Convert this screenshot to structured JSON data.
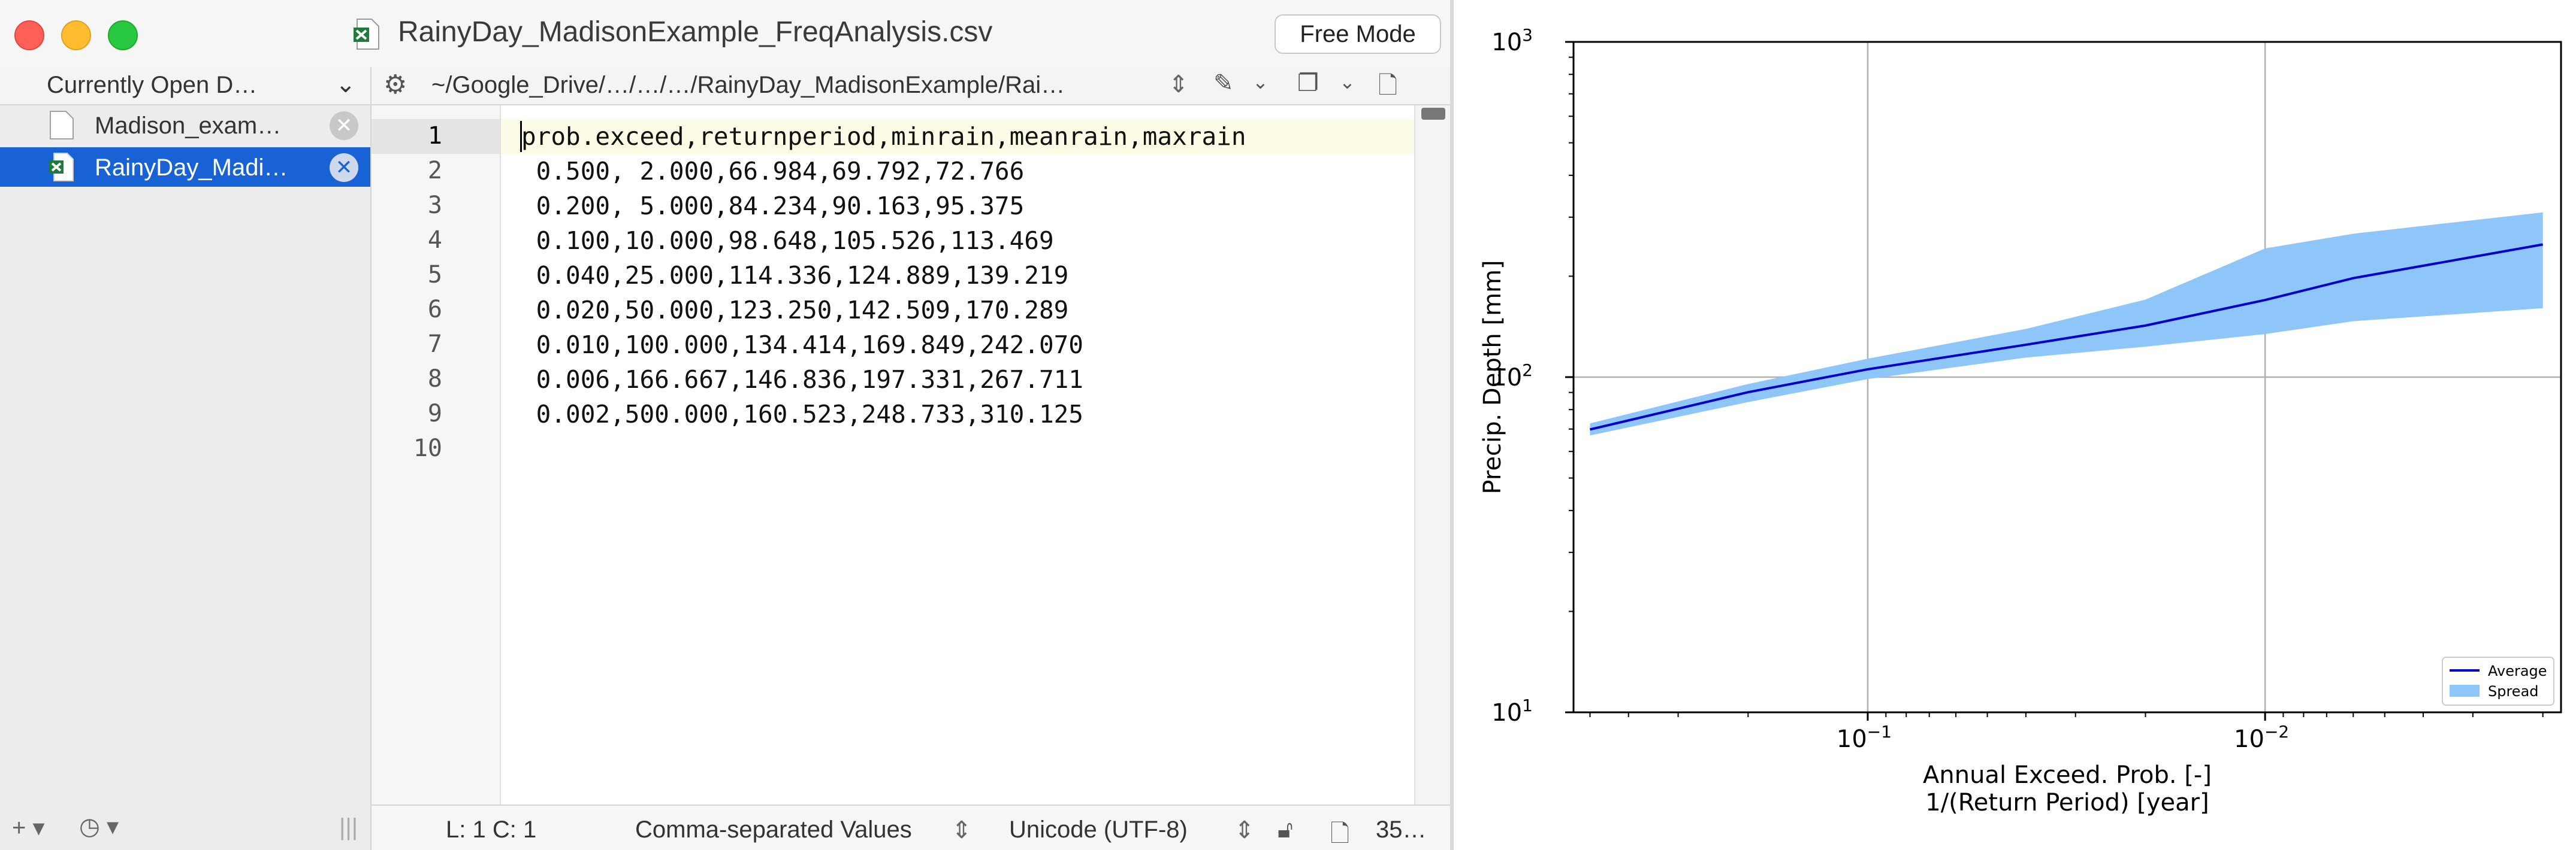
{
  "window": {
    "title": "RainyDay_MadisonExample_FreqAnalysis.csv",
    "mode_button": "Free Mode"
  },
  "pathbar": {
    "documents_label": "Currently Open D…",
    "path": "~/Google_Drive/…/…/…/RainyDay_MadisonExample/Rai…"
  },
  "sidebar": {
    "items": [
      {
        "label": "Madison_exam…",
        "icon": "document-icon",
        "selected": false
      },
      {
        "label": "RainyDay_Madi…",
        "icon": "spreadsheet-icon",
        "selected": true
      }
    ],
    "footer": {
      "add": "+",
      "history": "clock-icon",
      "resize": "|||"
    }
  },
  "editor": {
    "line_numbers": [
      "1",
      "2",
      "3",
      "4",
      "5",
      "6",
      "7",
      "8",
      "9",
      "10"
    ],
    "lines": [
      "prob.exceed,returnperiod,minrain,meanrain,maxrain",
      " 0.500, 2.000,66.984,69.792,72.766",
      " 0.200, 5.000,84.234,90.163,95.375",
      " 0.100,10.000,98.648,105.526,113.469",
      " 0.040,25.000,114.336,124.889,139.219",
      " 0.020,50.000,123.250,142.509,170.289",
      " 0.010,100.000,134.414,169.849,242.070",
      " 0.006,166.667,146.836,197.331,267.711",
      " 0.002,500.000,160.523,248.733,310.125",
      ""
    ]
  },
  "statusbar": {
    "position": "L: 1 C: 1",
    "syntax": "Comma-separated Values",
    "encoding": "Unicode (UTF-8)",
    "size": "35…"
  },
  "colors": {
    "selection": "#1962d6",
    "average_line": "#0000cc",
    "spread_fill": "#8ec6fa"
  },
  "chart_data": {
    "type": "area",
    "title": "",
    "xlabel": "Annual Exceed. Prob. [-]",
    "xlabel2": "1/(Return Period) [year]",
    "ylabel": "Precip. Depth [mm]",
    "xscale": "log",
    "yscale": "log",
    "x_inverted": true,
    "xlim": [
      0.55,
      0.0018
    ],
    "ylim": [
      10,
      1000
    ],
    "x_ticks": [
      {
        "value": 0.1,
        "base": "10",
        "exp": "−1"
      },
      {
        "value": 0.01,
        "base": "10",
        "exp": "−2"
      }
    ],
    "y_ticks": [
      {
        "value": 10,
        "base": "10",
        "exp": "1"
      },
      {
        "value": 100,
        "base": "10",
        "exp": "2"
      },
      {
        "value": 1000,
        "base": "10",
        "exp": "3"
      }
    ],
    "grid": true,
    "legend_position": "lower-right",
    "x": [
      0.5,
      0.2,
      0.1,
      0.04,
      0.02,
      0.01,
      0.006,
      0.002
    ],
    "series": [
      {
        "name": "Average",
        "kind": "line",
        "values": [
          69.792,
          90.163,
          105.526,
          124.889,
          142.509,
          169.849,
          197.331,
          248.733
        ]
      },
      {
        "name": "Spread",
        "kind": "band",
        "lower": [
          66.984,
          84.234,
          98.648,
          114.336,
          123.25,
          134.414,
          146.836,
          160.523
        ],
        "upper": [
          72.766,
          95.375,
          113.469,
          139.219,
          170.289,
          242.07,
          267.711,
          310.125
        ]
      }
    ]
  }
}
